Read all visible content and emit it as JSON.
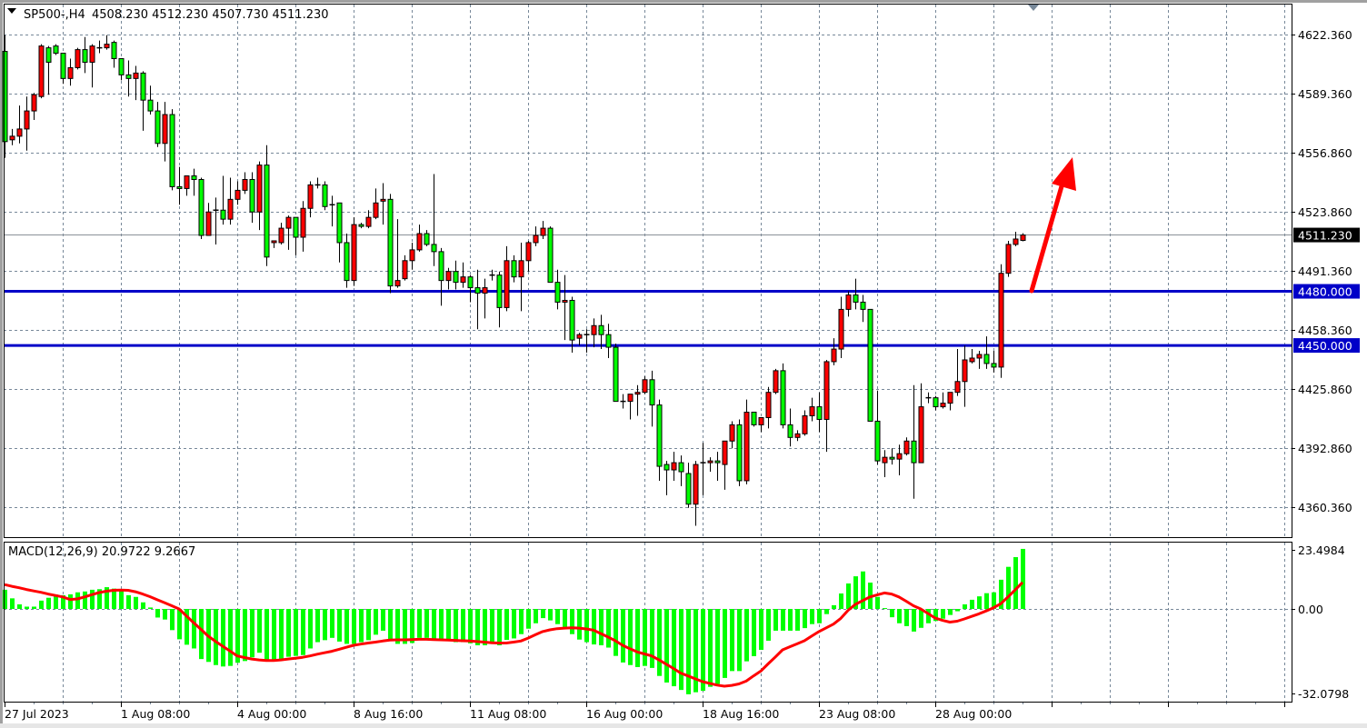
{
  "header": {
    "symbol": "SP500-,H4",
    "ohlc": "4508.230 4512.230 4507.730 4511.230"
  },
  "colors": {
    "up_candle": "#ff0000",
    "down_candle": "#00ff00",
    "level_line": "#0000c8",
    "macd_histogram": "#00ff00",
    "macd_signal": "#ff0000",
    "arrow": "#ff0000",
    "grid": "#778899"
  },
  "chart_data": [
    {
      "type": "candlestick",
      "title": "SP500-,H4",
      "timeframe": "H4",
      "ylim": [
        4351,
        4633
      ],
      "grid": true,
      "y_tick_labels": [
        "4622.360",
        "4589.360",
        "4556.860",
        "4523.860",
        "4491.360",
        "4458.360",
        "4425.860",
        "4392.860",
        "4360.360"
      ],
      "x_tick_labels": [
        "27 Jul 2023",
        "1 Aug 08:00",
        "4 Aug 00:00",
        "8 Aug 16:00",
        "11 Aug 08:00",
        "16 Aug 00:00",
        "18 Aug 16:00",
        "23 Aug 08:00",
        "28 Aug 00:00"
      ],
      "current_price": {
        "value": 4511.23,
        "label": "4511.230"
      },
      "horizontal_levels": [
        {
          "value": 4480.0,
          "label": "4480.000"
        },
        {
          "value": 4450.0,
          "label": "4450.000"
        }
      ],
      "annotation": {
        "type": "arrow",
        "direction": "up",
        "from_price": 4480,
        "to_price": 4556
      },
      "candles_ohlc": [
        [
          4613,
          4622,
          4554,
          4563
        ],
        [
          4564,
          4570,
          4561,
          4566
        ],
        [
          4566,
          4583,
          4562,
          4570
        ],
        [
          4570,
          4588,
          4558,
          4580
        ],
        [
          4580,
          4590,
          4575,
          4589
        ],
        [
          4588,
          4617,
          4587,
          4616
        ],
        [
          4615,
          4616,
          4589,
          4607
        ],
        [
          4616,
          4617,
          4611,
          4612
        ],
        [
          4612,
          4612,
          4595,
          4598
        ],
        [
          4598,
          4609,
          4594,
          4604
        ],
        [
          4604,
          4615,
          4603,
          4614
        ],
        [
          4614,
          4621,
          4601,
          4607
        ],
        [
          4607,
          4617,
          4593,
          4616
        ],
        [
          4615,
          4619,
          4612,
          4615
        ],
        [
          4615,
          4622,
          4614,
          4617
        ],
        [
          4618,
          4619,
          4604,
          4609
        ],
        [
          4609,
          4609,
          4597,
          4600
        ],
        [
          4600,
          4608,
          4588,
          4598
        ],
        [
          4598,
          4605,
          4586,
          4601
        ],
        [
          4601,
          4602,
          4569,
          4586
        ],
        [
          4586,
          4594,
          4578,
          4580
        ],
        [
          4580,
          4585,
          4560,
          4562
        ],
        [
          4562,
          4585,
          4552,
          4578
        ],
        [
          4578,
          4581,
          4536,
          4538
        ],
        [
          4538,
          4549,
          4528,
          4537
        ],
        [
          4537,
          4544,
          4533,
          4544
        ],
        [
          4544,
          4548,
          4533,
          4542
        ],
        [
          4542,
          4543,
          4509,
          4511
        ],
        [
          4511,
          4529,
          4511,
          4524
        ],
        [
          4525,
          4532,
          4506,
          4525
        ],
        [
          4525,
          4544,
          4517,
          4520
        ],
        [
          4520,
          4543,
          4517,
          4531
        ],
        [
          4531,
          4541,
          4528,
          4536
        ],
        [
          4536,
          4546,
          4534,
          4542
        ],
        [
          4542,
          4546,
          4518,
          4524
        ],
        [
          4524,
          4552,
          4514,
          4550
        ],
        [
          4550,
          4561,
          4494,
          4499
        ],
        [
          4507,
          4508,
          4504,
          4508
        ],
        [
          4507,
          4518,
          4506,
          4515
        ],
        [
          4515,
          4522,
          4503,
          4521
        ],
        [
          4521,
          4521,
          4500,
          4510
        ],
        [
          4510,
          4530,
          4502,
          4526
        ],
        [
          4526,
          4541,
          4521,
          4539
        ],
        [
          4539,
          4543,
          4537,
          4539
        ],
        [
          4539,
          4541,
          4525,
          4527
        ],
        [
          4528,
          4533,
          4516,
          4528
        ],
        [
          4529,
          4529,
          4496,
          4507
        ],
        [
          4507,
          4512,
          4482,
          4486
        ],
        [
          4486,
          4521,
          4483,
          4517
        ],
        [
          4517,
          4518,
          4515,
          4516
        ],
        [
          4516,
          4525,
          4515,
          4521
        ],
        [
          4521,
          4537,
          4520,
          4529
        ],
        [
          4530,
          4540,
          4517,
          4531
        ],
        [
          4531,
          4534,
          4479,
          4483
        ],
        [
          4483,
          4520,
          4482,
          4486
        ],
        [
          4487,
          4500,
          4486,
          4497
        ],
        [
          4497,
          4507,
          4492,
          4503
        ],
        [
          4503,
          4517,
          4502,
          4512
        ],
        [
          4512,
          4514,
          4505,
          4506
        ],
        [
          4506,
          4545,
          4494,
          4502
        ],
        [
          4502,
          4504,
          4472,
          4486
        ],
        [
          4486,
          4493,
          4481,
          4491
        ],
        [
          4491,
          4497,
          4481,
          4485
        ],
        [
          4485,
          4496,
          4482,
          4488
        ],
        [
          4488,
          4489,
          4474,
          4482
        ],
        [
          4482,
          4492,
          4459,
          4479
        ],
        [
          4479,
          4487,
          4465,
          4482
        ],
        [
          4489,
          4492,
          4486,
          4489
        ],
        [
          4489,
          4491,
          4460,
          4471
        ],
        [
          4471,
          4505,
          4469,
          4497
        ],
        [
          4497,
          4500,
          4485,
          4488
        ],
        [
          4488,
          4507,
          4469,
          4497
        ],
        [
          4497,
          4508,
          4491,
          4507
        ],
        [
          4507,
          4516,
          4505,
          4511
        ],
        [
          4511,
          4519,
          4509,
          4515
        ],
        [
          4515,
          4516,
          4485,
          4485
        ],
        [
          4485,
          4492,
          4470,
          4474
        ],
        [
          4474,
          4489,
          4453,
          4475
        ],
        [
          4475,
          4477,
          4446,
          4453
        ],
        [
          4454,
          4457,
          4450,
          4456
        ],
        [
          4456,
          4459,
          4446,
          4456
        ],
        [
          4456,
          4465,
          4449,
          4461
        ],
        [
          4461,
          4467,
          4448,
          4456
        ],
        [
          4456,
          4462,
          4443,
          4449
        ],
        [
          4449,
          4451,
          4419,
          4419
        ],
        [
          4419,
          4423,
          4415,
          4419
        ],
        [
          4419,
          4423,
          4409,
          4423
        ],
        [
          4423,
          4428,
          4411,
          4424
        ],
        [
          4424,
          4433,
          4423,
          4431
        ],
        [
          4431,
          4436,
          4405,
          4417
        ],
        [
          4417,
          4420,
          4375,
          4383
        ],
        [
          4384,
          4386,
          4367,
          4381
        ],
        [
          4381,
          4391,
          4375,
          4385
        ],
        [
          4385,
          4389,
          4372,
          4380
        ],
        [
          4379,
          4385,
          4360,
          4362
        ],
        [
          4362,
          4386,
          4350,
          4384
        ],
        [
          4385,
          4396,
          4367,
          4385
        ],
        [
          4385,
          4388,
          4380,
          4386
        ],
        [
          4386,
          4391,
          4375,
          4385
        ],
        [
          4384,
          4397,
          4370,
          4397
        ],
        [
          4397,
          4408,
          4393,
          4406
        ],
        [
          4406,
          4409,
          4372,
          4375
        ],
        [
          4375,
          4420,
          4373,
          4413
        ],
        [
          4413,
          4413,
          4405,
          4406
        ],
        [
          4406,
          4410,
          4402,
          4410
        ],
        [
          4410,
          4427,
          4404,
          4424
        ],
        [
          4424,
          4437,
          4423,
          4436
        ],
        [
          4436,
          4440,
          4404,
          4406
        ],
        [
          4406,
          4415,
          4394,
          4399
        ],
        [
          4399,
          4403,
          4397,
          4401
        ],
        [
          4401,
          4414,
          4400,
          4411
        ],
        [
          4411,
          4421,
          4408,
          4416
        ],
        [
          4416,
          4424,
          4402,
          4409
        ],
        [
          4409,
          4442,
          4391,
          4441
        ],
        [
          4441,
          4454,
          4439,
          4448
        ],
        [
          4448,
          4477,
          4443,
          4470
        ],
        [
          4470,
          4480,
          4466,
          4478
        ],
        [
          4478,
          4487,
          4470,
          4474
        ],
        [
          4474,
          4478,
          4463,
          4470
        ],
        [
          4470,
          4470,
          4408,
          4408
        ],
        [
          4408,
          4425,
          4384,
          4386
        ],
        [
          4385,
          4392,
          4377,
          4388
        ],
        [
          4388,
          4393,
          4384,
          4387
        ],
        [
          4387,
          4395,
          4378,
          4390
        ],
        [
          4390,
          4399,
          4389,
          4397
        ],
        [
          4397,
          4428,
          4365,
          4385
        ],
        [
          4385,
          4429,
          4385,
          4416
        ],
        [
          4421,
          4424,
          4418,
          4421
        ],
        [
          4421,
          4422,
          4414,
          4416
        ],
        [
          4416,
          4424,
          4415,
          4418
        ],
        [
          4418,
          4424,
          4414,
          4424
        ],
        [
          4424,
          4448,
          4422,
          4430
        ],
        [
          4430,
          4450,
          4416,
          4442
        ],
        [
          4441,
          4448,
          4440,
          4443
        ],
        [
          4443,
          4447,
          4437,
          4445
        ],
        [
          4445,
          4455,
          4437,
          4440
        ],
        [
          4440,
          4447,
          4435,
          4438
        ],
        [
          4438,
          4495,
          4432,
          4490
        ],
        [
          4490,
          4508,
          4488,
          4506
        ],
        [
          4506,
          4513,
          4505,
          4509
        ],
        [
          4508.23,
          4512.23,
          4507.73,
          4511.23
        ]
      ]
    },
    {
      "type": "bar+line",
      "title": "MACD(12,26,9)",
      "label": "MACD(12,26,9) 20.9722 9.2667",
      "ylim": [
        -32.0798,
        23.4984
      ],
      "y_tick_labels": [
        "23.4984",
        "0.00",
        "-32.0798"
      ],
      "grid": true,
      "histogram": [
        6.7,
        3.7,
        1.6,
        0.8,
        0.8,
        2.9,
        3.9,
        5.0,
        4.8,
        5.1,
        5.8,
        6.1,
        6.7,
        6.9,
        7.6,
        7.1,
        6.3,
        4.8,
        4.2,
        2.3,
        0.5,
        -3.0,
        -3.7,
        -7.4,
        -10.6,
        -12.5,
        -13.8,
        -17.5,
        -18.5,
        -19.6,
        -20.1,
        -19.9,
        -18.8,
        -18.2,
        -16.9,
        -15.3,
        -18.0,
        -17.8,
        -17.5,
        -16.7,
        -16.4,
        -16.1,
        -13.8,
        -11.6,
        -10.9,
        -10.1,
        -11.4,
        -12.2,
        -12.2,
        -11.6,
        -10.9,
        -9.0,
        -7.6,
        -10.6,
        -12.2,
        -12.2,
        -11.9,
        -10.1,
        -10.1,
        -10.4,
        -10.4,
        -10.6,
        -11.6,
        -11.6,
        -12.0,
        -12.7,
        -12.7,
        -11.6,
        -12.7,
        -10.8,
        -10.3,
        -8.8,
        -6.9,
        -5.0,
        -3.2,
        -4.0,
        -5.3,
        -6.3,
        -8.8,
        -10.7,
        -11.6,
        -12.4,
        -12.7,
        -13.5,
        -16.4,
        -18.7,
        -19.6,
        -20.3,
        -19.9,
        -20.6,
        -23.4,
        -25.7,
        -27.0,
        -28.3,
        -29.8,
        -29.1,
        -28.6,
        -27.2,
        -26.2,
        -24.1,
        -21.7,
        -21.7,
        -18.3,
        -16.5,
        -14.3,
        -11.1,
        -7.6,
        -7.6,
        -7.6,
        -7.6,
        -6.7,
        -5.3,
        -5.0,
        -1.8,
        1.3,
        5.4,
        8.9,
        11.4,
        13.1,
        9.2,
        4.2,
        0.3,
        -2.9,
        -5.0,
        -6.0,
        -7.9,
        -6.6,
        -5.0,
        -4.2,
        -3.4,
        -2.1,
        -0.8,
        1.6,
        3.2,
        4.4,
        5.5,
        5.8,
        10.2,
        14.7,
        18.1,
        20.9722
      ],
      "signal": [
        8.5,
        7.9,
        7.4,
        6.8,
        6.3,
        5.8,
        5.2,
        4.7,
        4.2,
        3.3,
        3.5,
        4.2,
        5.0,
        5.7,
        6.2,
        6.5,
        6.6,
        6.5,
        6.0,
        5.2,
        4.3,
        3.2,
        2.2,
        1.1,
        0,
        -2.4,
        -4.8,
        -7.1,
        -9.5,
        -11.3,
        -13.0,
        -14.7,
        -16.4,
        -17.0,
        -17.5,
        -17.8,
        -18.0,
        -18.0,
        -17.8,
        -17.5,
        -17.2,
        -16.9,
        -16.4,
        -15.8,
        -15.3,
        -14.8,
        -14.1,
        -13.4,
        -12.7,
        -12.3,
        -11.9,
        -11.6,
        -11.2,
        -10.9,
        -10.8,
        -10.8,
        -10.7,
        -10.6,
        -10.6,
        -10.7,
        -10.8,
        -10.9,
        -11.0,
        -11.1,
        -11.2,
        -11.4,
        -11.6,
        -11.8,
        -11.9,
        -11.9,
        -11.6,
        -11.2,
        -10.2,
        -9.0,
        -7.9,
        -7.3,
        -6.9,
        -6.7,
        -6.6,
        -6.7,
        -7.0,
        -7.4,
        -8.6,
        -9.8,
        -11.1,
        -12.7,
        -13.9,
        -15.0,
        -15.7,
        -16.4,
        -17.8,
        -19.3,
        -20.8,
        -22.4,
        -23.4,
        -24.4,
        -25.4,
        -26.0,
        -26.6,
        -27.0,
        -26.7,
        -26.2,
        -25.2,
        -23.4,
        -21.7,
        -19.2,
        -16.8,
        -14.3,
        -13.2,
        -12.2,
        -11.1,
        -9.5,
        -7.9,
        -6.6,
        -5.3,
        -3.3,
        -0.5,
        1.6,
        2.9,
        4.2,
        4.9,
        5.6,
        5.2,
        4.2,
        2.7,
        1.1,
        0,
        -1.6,
        -3.2,
        -4.0,
        -4.6,
        -4.3,
        -3.5,
        -2.6,
        -1.7,
        -0.7,
        0.4,
        1.8,
        4.2,
        6.7,
        9.2667
      ]
    }
  ]
}
